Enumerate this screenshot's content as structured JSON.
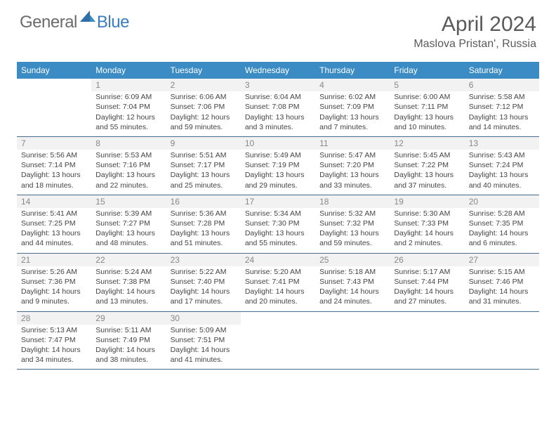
{
  "brand": {
    "part1": "General",
    "part2": "Blue"
  },
  "title": "April 2024",
  "location": "Maslova Pristan', Russia",
  "header_bg": "#3b8bc4",
  "header_text": "#ffffff",
  "border_color": "#4a6a8a",
  "daynum_bg": "#f2f2f2",
  "daynum_color": "#888888",
  "body_text": "#444444",
  "weekdays": [
    "Sunday",
    "Monday",
    "Tuesday",
    "Wednesday",
    "Thursday",
    "Friday",
    "Saturday"
  ],
  "weeks": [
    [
      {
        "n": "",
        "sunrise": "",
        "sunset": "",
        "day1": "",
        "day2": ""
      },
      {
        "n": "1",
        "sunrise": "Sunrise: 6:09 AM",
        "sunset": "Sunset: 7:04 PM",
        "day1": "Daylight: 12 hours",
        "day2": "and 55 minutes."
      },
      {
        "n": "2",
        "sunrise": "Sunrise: 6:06 AM",
        "sunset": "Sunset: 7:06 PM",
        "day1": "Daylight: 12 hours",
        "day2": "and 59 minutes."
      },
      {
        "n": "3",
        "sunrise": "Sunrise: 6:04 AM",
        "sunset": "Sunset: 7:08 PM",
        "day1": "Daylight: 13 hours",
        "day2": "and 3 minutes."
      },
      {
        "n": "4",
        "sunrise": "Sunrise: 6:02 AM",
        "sunset": "Sunset: 7:09 PM",
        "day1": "Daylight: 13 hours",
        "day2": "and 7 minutes."
      },
      {
        "n": "5",
        "sunrise": "Sunrise: 6:00 AM",
        "sunset": "Sunset: 7:11 PM",
        "day1": "Daylight: 13 hours",
        "day2": "and 10 minutes."
      },
      {
        "n": "6",
        "sunrise": "Sunrise: 5:58 AM",
        "sunset": "Sunset: 7:12 PM",
        "day1": "Daylight: 13 hours",
        "day2": "and 14 minutes."
      }
    ],
    [
      {
        "n": "7",
        "sunrise": "Sunrise: 5:56 AM",
        "sunset": "Sunset: 7:14 PM",
        "day1": "Daylight: 13 hours",
        "day2": "and 18 minutes."
      },
      {
        "n": "8",
        "sunrise": "Sunrise: 5:53 AM",
        "sunset": "Sunset: 7:16 PM",
        "day1": "Daylight: 13 hours",
        "day2": "and 22 minutes."
      },
      {
        "n": "9",
        "sunrise": "Sunrise: 5:51 AM",
        "sunset": "Sunset: 7:17 PM",
        "day1": "Daylight: 13 hours",
        "day2": "and 25 minutes."
      },
      {
        "n": "10",
        "sunrise": "Sunrise: 5:49 AM",
        "sunset": "Sunset: 7:19 PM",
        "day1": "Daylight: 13 hours",
        "day2": "and 29 minutes."
      },
      {
        "n": "11",
        "sunrise": "Sunrise: 5:47 AM",
        "sunset": "Sunset: 7:20 PM",
        "day1": "Daylight: 13 hours",
        "day2": "and 33 minutes."
      },
      {
        "n": "12",
        "sunrise": "Sunrise: 5:45 AM",
        "sunset": "Sunset: 7:22 PM",
        "day1": "Daylight: 13 hours",
        "day2": "and 37 minutes."
      },
      {
        "n": "13",
        "sunrise": "Sunrise: 5:43 AM",
        "sunset": "Sunset: 7:24 PM",
        "day1": "Daylight: 13 hours",
        "day2": "and 40 minutes."
      }
    ],
    [
      {
        "n": "14",
        "sunrise": "Sunrise: 5:41 AM",
        "sunset": "Sunset: 7:25 PM",
        "day1": "Daylight: 13 hours",
        "day2": "and 44 minutes."
      },
      {
        "n": "15",
        "sunrise": "Sunrise: 5:39 AM",
        "sunset": "Sunset: 7:27 PM",
        "day1": "Daylight: 13 hours",
        "day2": "and 48 minutes."
      },
      {
        "n": "16",
        "sunrise": "Sunrise: 5:36 AM",
        "sunset": "Sunset: 7:28 PM",
        "day1": "Daylight: 13 hours",
        "day2": "and 51 minutes."
      },
      {
        "n": "17",
        "sunrise": "Sunrise: 5:34 AM",
        "sunset": "Sunset: 7:30 PM",
        "day1": "Daylight: 13 hours",
        "day2": "and 55 minutes."
      },
      {
        "n": "18",
        "sunrise": "Sunrise: 5:32 AM",
        "sunset": "Sunset: 7:32 PM",
        "day1": "Daylight: 13 hours",
        "day2": "and 59 minutes."
      },
      {
        "n": "19",
        "sunrise": "Sunrise: 5:30 AM",
        "sunset": "Sunset: 7:33 PM",
        "day1": "Daylight: 14 hours",
        "day2": "and 2 minutes."
      },
      {
        "n": "20",
        "sunrise": "Sunrise: 5:28 AM",
        "sunset": "Sunset: 7:35 PM",
        "day1": "Daylight: 14 hours",
        "day2": "and 6 minutes."
      }
    ],
    [
      {
        "n": "21",
        "sunrise": "Sunrise: 5:26 AM",
        "sunset": "Sunset: 7:36 PM",
        "day1": "Daylight: 14 hours",
        "day2": "and 9 minutes."
      },
      {
        "n": "22",
        "sunrise": "Sunrise: 5:24 AM",
        "sunset": "Sunset: 7:38 PM",
        "day1": "Daylight: 14 hours",
        "day2": "and 13 minutes."
      },
      {
        "n": "23",
        "sunrise": "Sunrise: 5:22 AM",
        "sunset": "Sunset: 7:40 PM",
        "day1": "Daylight: 14 hours",
        "day2": "and 17 minutes."
      },
      {
        "n": "24",
        "sunrise": "Sunrise: 5:20 AM",
        "sunset": "Sunset: 7:41 PM",
        "day1": "Daylight: 14 hours",
        "day2": "and 20 minutes."
      },
      {
        "n": "25",
        "sunrise": "Sunrise: 5:18 AM",
        "sunset": "Sunset: 7:43 PM",
        "day1": "Daylight: 14 hours",
        "day2": "and 24 minutes."
      },
      {
        "n": "26",
        "sunrise": "Sunrise: 5:17 AM",
        "sunset": "Sunset: 7:44 PM",
        "day1": "Daylight: 14 hours",
        "day2": "and 27 minutes."
      },
      {
        "n": "27",
        "sunrise": "Sunrise: 5:15 AM",
        "sunset": "Sunset: 7:46 PM",
        "day1": "Daylight: 14 hours",
        "day2": "and 31 minutes."
      }
    ],
    [
      {
        "n": "28",
        "sunrise": "Sunrise: 5:13 AM",
        "sunset": "Sunset: 7:47 PM",
        "day1": "Daylight: 14 hours",
        "day2": "and 34 minutes."
      },
      {
        "n": "29",
        "sunrise": "Sunrise: 5:11 AM",
        "sunset": "Sunset: 7:49 PM",
        "day1": "Daylight: 14 hours",
        "day2": "and 38 minutes."
      },
      {
        "n": "30",
        "sunrise": "Sunrise: 5:09 AM",
        "sunset": "Sunset: 7:51 PM",
        "day1": "Daylight: 14 hours",
        "day2": "and 41 minutes."
      },
      {
        "n": "",
        "sunrise": "",
        "sunset": "",
        "day1": "",
        "day2": ""
      },
      {
        "n": "",
        "sunrise": "",
        "sunset": "",
        "day1": "",
        "day2": ""
      },
      {
        "n": "",
        "sunrise": "",
        "sunset": "",
        "day1": "",
        "day2": ""
      },
      {
        "n": "",
        "sunrise": "",
        "sunset": "",
        "day1": "",
        "day2": ""
      }
    ]
  ]
}
